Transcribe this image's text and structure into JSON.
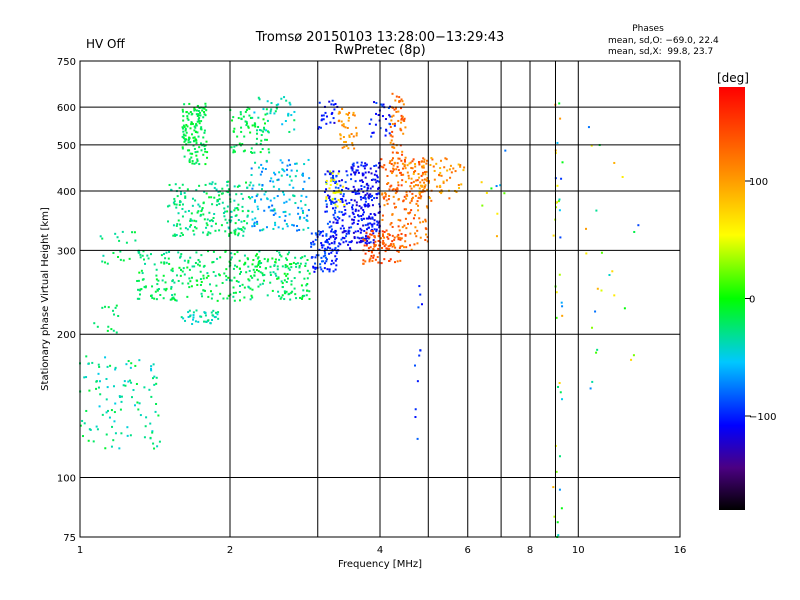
{
  "chart_data": {
    "type": "scatter",
    "title": "Tromsø 20150103 13:28:00−13:29:43",
    "subtitle": "RwPretec (8p)",
    "status": {
      "text": "HV Off",
      "color": "#d40000"
    },
    "stats": {
      "heading": "Phases",
      "line1": "mean, sd,O: −69.0, 22.4",
      "line2": "mean, sd,X:  99.8, 23.7"
    },
    "xlabel": "Frequency [MHz]",
    "ylabel": "Stationary phase Virtual Height [km]",
    "x_scale": "log2",
    "y_scale": "log",
    "xlim": [
      1,
      16
    ],
    "ylim": [
      75,
      750
    ],
    "x_ticks": [
      {
        "value": 1,
        "label": "1"
      },
      {
        "value": 2,
        "label": "2"
      },
      {
        "value": 4,
        "label": "4"
      },
      {
        "value": 6,
        "label": "6"
      },
      {
        "value": 8,
        "label": "8"
      },
      {
        "value": 10,
        "label": "10"
      },
      {
        "value": 16,
        "label": "16"
      }
    ],
    "x_grid": [
      2,
      4,
      6,
      8,
      10,
      3,
      5,
      7,
      9
    ],
    "y_ticks": [
      {
        "value": 75,
        "label": "75"
      },
      {
        "value": 100,
        "label": "100"
      },
      {
        "value": 200,
        "label": "200"
      },
      {
        "value": 300,
        "label": "300"
      },
      {
        "value": 400,
        "label": "400"
      },
      {
        "value": 500,
        "label": "500"
      },
      {
        "value": 600,
        "label": "600"
      },
      {
        "value": 750,
        "label": "750"
      }
    ],
    "y_grid": [
      100,
      200,
      300,
      400,
      500,
      600
    ],
    "colorbar": {
      "label": "[deg]",
      "range": [
        -180,
        180
      ],
      "ticks": [
        {
          "value": 100,
          "label": "100"
        },
        {
          "value": 0,
          "label": "0"
        },
        {
          "value": -100,
          "label": "−100"
        }
      ]
    },
    "clusters": [
      {
        "f": [
          1.0,
          1.45
        ],
        "h": [
          115,
          180
        ],
        "phase": [
          -10,
          -50
        ],
        "n": 110
      },
      {
        "f": [
          1.05,
          1.2
        ],
        "h": [
          200,
          235
        ],
        "phase": [
          -10,
          -30
        ],
        "n": 15
      },
      {
        "f": [
          1.1,
          1.3
        ],
        "h": [
          280,
          330
        ],
        "phase": [
          -10,
          -40
        ],
        "n": 20
      },
      {
        "f": [
          1.3,
          2.9
        ],
        "h": [
          235,
          300
        ],
        "phase": [
          -5,
          -35
        ],
        "n": 360
      },
      {
        "f": [
          1.6,
          1.9
        ],
        "h": [
          210,
          225
        ],
        "phase": [
          -20,
          -50
        ],
        "n": 40
      },
      {
        "f": [
          1.5,
          2.2
        ],
        "h": [
          320,
          420
        ],
        "phase": [
          -10,
          -40
        ],
        "n": 200
      },
      {
        "f": [
          1.6,
          1.8
        ],
        "h": [
          455,
          610
        ],
        "phase": [
          -5,
          -25
        ],
        "n": 140
      },
      {
        "f": [
          2.0,
          2.4
        ],
        "h": [
          480,
          600
        ],
        "phase": [
          -5,
          -25
        ],
        "n": 70
      },
      {
        "f": [
          2.2,
          2.9
        ],
        "h": [
          330,
          470
        ],
        "phase": [
          -30,
          -80
        ],
        "n": 140
      },
      {
        "f": [
          2.2,
          2.7
        ],
        "h": [
          530,
          630
        ],
        "phase": [
          -20,
          -60
        ],
        "n": 40
      },
      {
        "f": [
          2.9,
          3.3
        ],
        "h": [
          270,
          330
        ],
        "phase": [
          -80,
          -110
        ],
        "n": 90
      },
      {
        "f": [
          3.1,
          3.5
        ],
        "h": [
          300,
          440
        ],
        "phase": [
          -80,
          -120
        ],
        "n": 130
      },
      {
        "f": [
          3.5,
          4.0
        ],
        "h": [
          310,
          460
        ],
        "phase": [
          -90,
          -125
        ],
        "n": 220
      },
      {
        "f": [
          3.7,
          4.4
        ],
        "h": [
          280,
          330
        ],
        "phase": [
          120,
          160
        ],
        "n": 90
      },
      {
        "f": [
          4.0,
          5.0
        ],
        "h": [
          300,
          470
        ],
        "phase": [
          100,
          150
        ],
        "n": 180
      },
      {
        "f": [
          4.2,
          4.5
        ],
        "h": [
          430,
          640
        ],
        "phase": [
          100,
          150
        ],
        "n": 70
      },
      {
        "f": [
          4.5,
          5.9
        ],
        "h": [
          380,
          470
        ],
        "phase": [
          80,
          130
        ],
        "n": 100
      },
      {
        "f": [
          3.1,
          3.4
        ],
        "h": [
          370,
          440
        ],
        "phase": [
          40,
          70
        ],
        "n": 30
      },
      {
        "f": [
          3.3,
          3.6
        ],
        "h": [
          490,
          600
        ],
        "phase": [
          90,
          120
        ],
        "n": 40
      },
      {
        "f": [
          3.0,
          3.3
        ],
        "h": [
          540,
          620
        ],
        "phase": [
          -90,
          -120
        ],
        "n": 25
      },
      {
        "f": [
          3.8,
          4.3
        ],
        "h": [
          520,
          620
        ],
        "phase": [
          -80,
          -120
        ],
        "n": 30
      },
      {
        "f": [
          4.7,
          4.9
        ],
        "h": [
          120,
          260
        ],
        "phase": [
          -80,
          -110
        ],
        "n": 12
      },
      {
        "f": [
          6.3,
          7.2
        ],
        "h": [
          320,
          520
        ],
        "phase": [
          -90,
          110
        ],
        "n": 10
      },
      {
        "f": [
          8.9,
          9.3
        ],
        "h": [
          75,
          640
        ],
        "phase": [
          -100,
          120
        ],
        "n": 40
      },
      {
        "f": [
          10.3,
          13.3
        ],
        "h": [
          150,
          550
        ],
        "phase": [
          -100,
          110
        ],
        "n": 25
      }
    ]
  }
}
